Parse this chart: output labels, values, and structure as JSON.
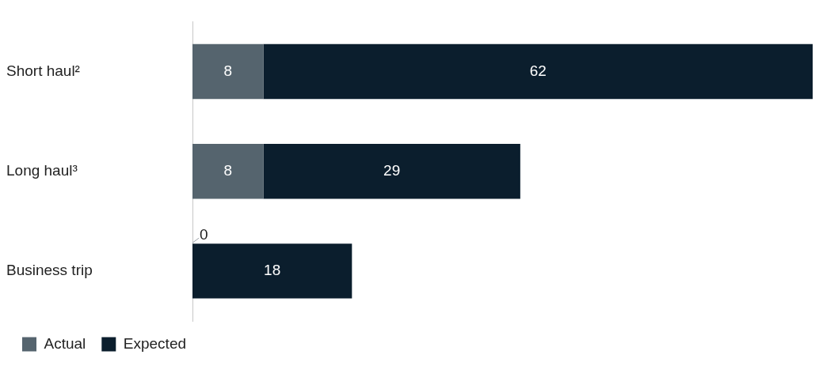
{
  "chart_data": {
    "type": "bar",
    "orientation": "horizontal",
    "stacked": true,
    "categories": [
      "Short haul²",
      "Long haul³",
      "Business trip"
    ],
    "series": [
      {
        "name": "Actual",
        "color": "#55646e",
        "values": [
          8,
          8,
          0
        ],
        "value_labels": [
          "8",
          "8",
          null
        ]
      },
      {
        "name": "Expected",
        "color": "#0b1e2d",
        "values": [
          62,
          29,
          18
        ],
        "value_labels": [
          "62",
          "29",
          "18"
        ]
      }
    ],
    "annotations": [
      {
        "text": "0",
        "x": 0,
        "y": "Business trip"
      }
    ],
    "grid": false,
    "legend": "bottom"
  }
}
